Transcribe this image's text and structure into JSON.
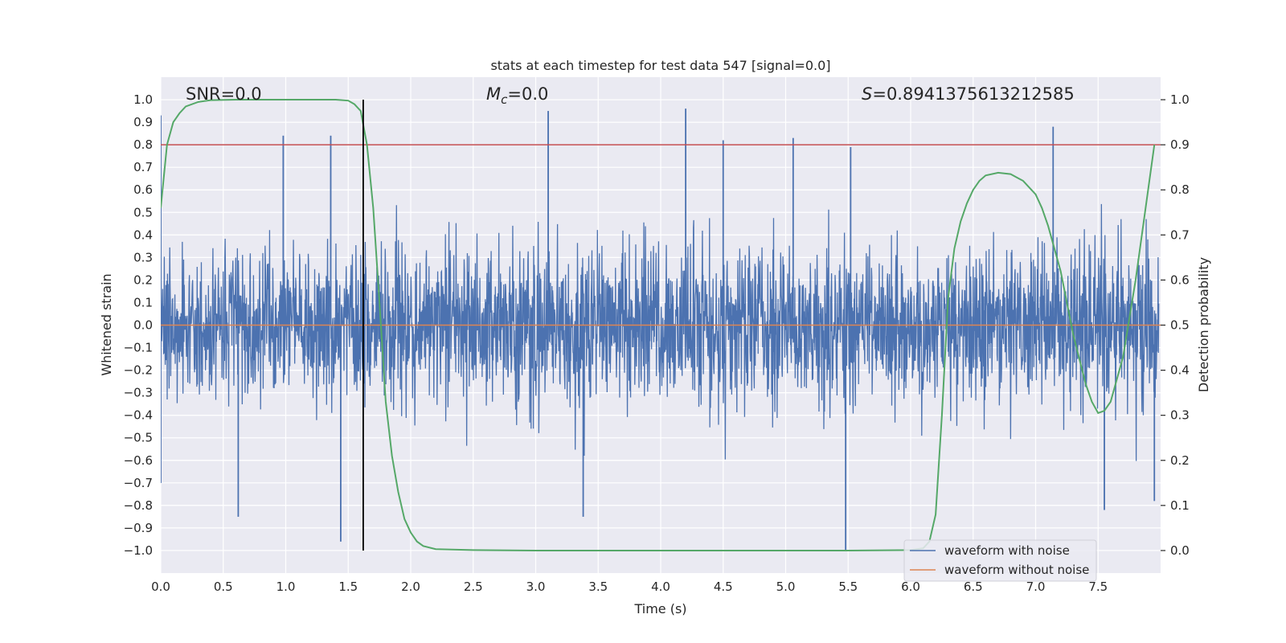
{
  "chart_data": {
    "type": "line",
    "title": "stats at each timestep for test data 547 [signal=0.0]",
    "xlabel": "Time (s)",
    "ylabel": "Whitened strain",
    "y2label": "Detection probability",
    "xlim": [
      0.0,
      8.0
    ],
    "ylim": [
      -1.1,
      1.1
    ],
    "y2lim": [
      -0.05,
      1.05
    ],
    "xticks": [
      0.0,
      0.5,
      1.0,
      1.5,
      2.0,
      2.5,
      3.0,
      3.5,
      4.0,
      4.5,
      5.0,
      5.5,
      6.0,
      6.5,
      7.0,
      7.5
    ],
    "xtick_labels": [
      "0.0",
      "0.5",
      "1.0",
      "1.5",
      "2.0",
      "2.5",
      "3.0",
      "3.5",
      "4.0",
      "4.5",
      "5.0",
      "5.5",
      "6.0",
      "6.5",
      "7.0",
      "7.5"
    ],
    "yticks": [
      1.0,
      0.9,
      0.8,
      0.7,
      0.6,
      0.5,
      0.4,
      0.3,
      0.2,
      0.1,
      0.0,
      -0.1,
      -0.2,
      -0.3,
      -0.4,
      -0.5,
      -0.6,
      -0.7,
      -0.8,
      -0.9,
      -1.0
    ],
    "ytick_labels": [
      "1.0",
      "0.9",
      "0.8",
      "0.7",
      "0.6",
      "0.5",
      "0.4",
      "0.3",
      "0.2",
      "0.1",
      "0.0",
      "−0.1",
      "−0.2",
      "−0.3",
      "−0.4",
      "−0.5",
      "−0.6",
      "−0.7",
      "−0.8",
      "−0.9",
      "−1.0"
    ],
    "y2ticks": [
      1.0,
      0.9,
      0.8,
      0.7,
      0.6,
      0.5,
      0.4,
      0.3,
      0.2,
      0.1,
      0.0
    ],
    "y2tick_labels": [
      "1.0",
      "0.9",
      "0.8",
      "0.7",
      "0.6",
      "0.5",
      "0.4",
      "0.3",
      "0.2",
      "0.1",
      "0.0"
    ],
    "annotations": {
      "snr": "SNR=0.0",
      "mc_symbol": "M",
      "mc_sub": "c",
      "mc_value": "=0.0",
      "s_symbol": "S",
      "s_value": "=0.8941375613212585"
    },
    "legend": {
      "position": "lower-right",
      "entries": [
        {
          "label": "waveform with noise",
          "color": "#4c72b0"
        },
        {
          "label": "waveform without noise",
          "color": "#dd8452"
        }
      ]
    },
    "series": [
      {
        "name": "waveform with noise",
        "axis": "left",
        "color": "#4c72b0",
        "description": "dense white-noise strain, envelope roughly -0.45 to 0.45 with spikes",
        "spikes": [
          {
            "t": 0.0,
            "v": 0.93
          },
          {
            "t": 0.0,
            "v": -0.7
          },
          {
            "t": 0.98,
            "v": 0.84
          },
          {
            "t": 1.36,
            "v": 0.84
          },
          {
            "t": 1.44,
            "v": -0.96
          },
          {
            "t": 0.62,
            "v": -0.85
          },
          {
            "t": 3.1,
            "v": 0.95
          },
          {
            "t": 3.38,
            "v": -0.85
          },
          {
            "t": 4.2,
            "v": 0.96
          },
          {
            "t": 4.5,
            "v": 0.82
          },
          {
            "t": 5.06,
            "v": 0.83
          },
          {
            "t": 5.48,
            "v": -1.0
          },
          {
            "t": 5.52,
            "v": 0.79
          },
          {
            "t": 7.14,
            "v": 0.88
          },
          {
            "t": 7.55,
            "v": -0.82
          },
          {
            "t": 7.95,
            "v": -0.78
          }
        ]
      },
      {
        "name": "waveform without noise",
        "axis": "left",
        "color": "#dd8452",
        "x": [
          0.0,
          8.0
        ],
        "y": [
          0.0,
          0.0
        ]
      },
      {
        "name": "detection probability",
        "axis": "right",
        "color": "#55a868",
        "x": [
          0.0,
          0.05,
          0.1,
          0.15,
          0.2,
          0.3,
          0.4,
          0.6,
          0.8,
          1.0,
          1.2,
          1.4,
          1.5,
          1.55,
          1.6,
          1.65,
          1.7,
          1.75,
          1.8,
          1.85,
          1.9,
          1.95,
          2.0,
          2.05,
          2.1,
          2.2,
          2.5,
          3.0,
          4.0,
          5.0,
          5.5,
          6.0,
          6.1,
          6.15,
          6.2,
          6.25,
          6.3,
          6.35,
          6.4,
          6.45,
          6.5,
          6.55,
          6.6,
          6.7,
          6.8,
          6.9,
          7.0,
          7.05,
          7.1,
          7.2,
          7.3,
          7.4,
          7.45,
          7.5,
          7.55,
          7.6,
          7.7,
          7.8,
          7.9,
          7.95
        ],
        "y": [
          0.76,
          0.9,
          0.95,
          0.97,
          0.985,
          0.995,
          0.999,
          1.0,
          1.0,
          1.0,
          1.0,
          1.0,
          0.998,
          0.99,
          0.975,
          0.9,
          0.76,
          0.55,
          0.33,
          0.21,
          0.13,
          0.07,
          0.04,
          0.02,
          0.01,
          0.003,
          0.001,
          0.0,
          0.0,
          0.0,
          0.0,
          0.001,
          0.005,
          0.02,
          0.08,
          0.3,
          0.56,
          0.67,
          0.73,
          0.77,
          0.8,
          0.82,
          0.832,
          0.838,
          0.835,
          0.82,
          0.79,
          0.76,
          0.72,
          0.62,
          0.48,
          0.37,
          0.33,
          0.305,
          0.31,
          0.33,
          0.43,
          0.6,
          0.8,
          0.9
        ]
      }
    ],
    "reference_lines": [
      {
        "name": "threshold",
        "axis": "right",
        "value": 0.9,
        "color": "#c44e52"
      },
      {
        "name": "event marker",
        "axis": "x",
        "value": 1.62,
        "color": "#000000",
        "y2_range": [
          0.0,
          1.0
        ]
      }
    ]
  }
}
